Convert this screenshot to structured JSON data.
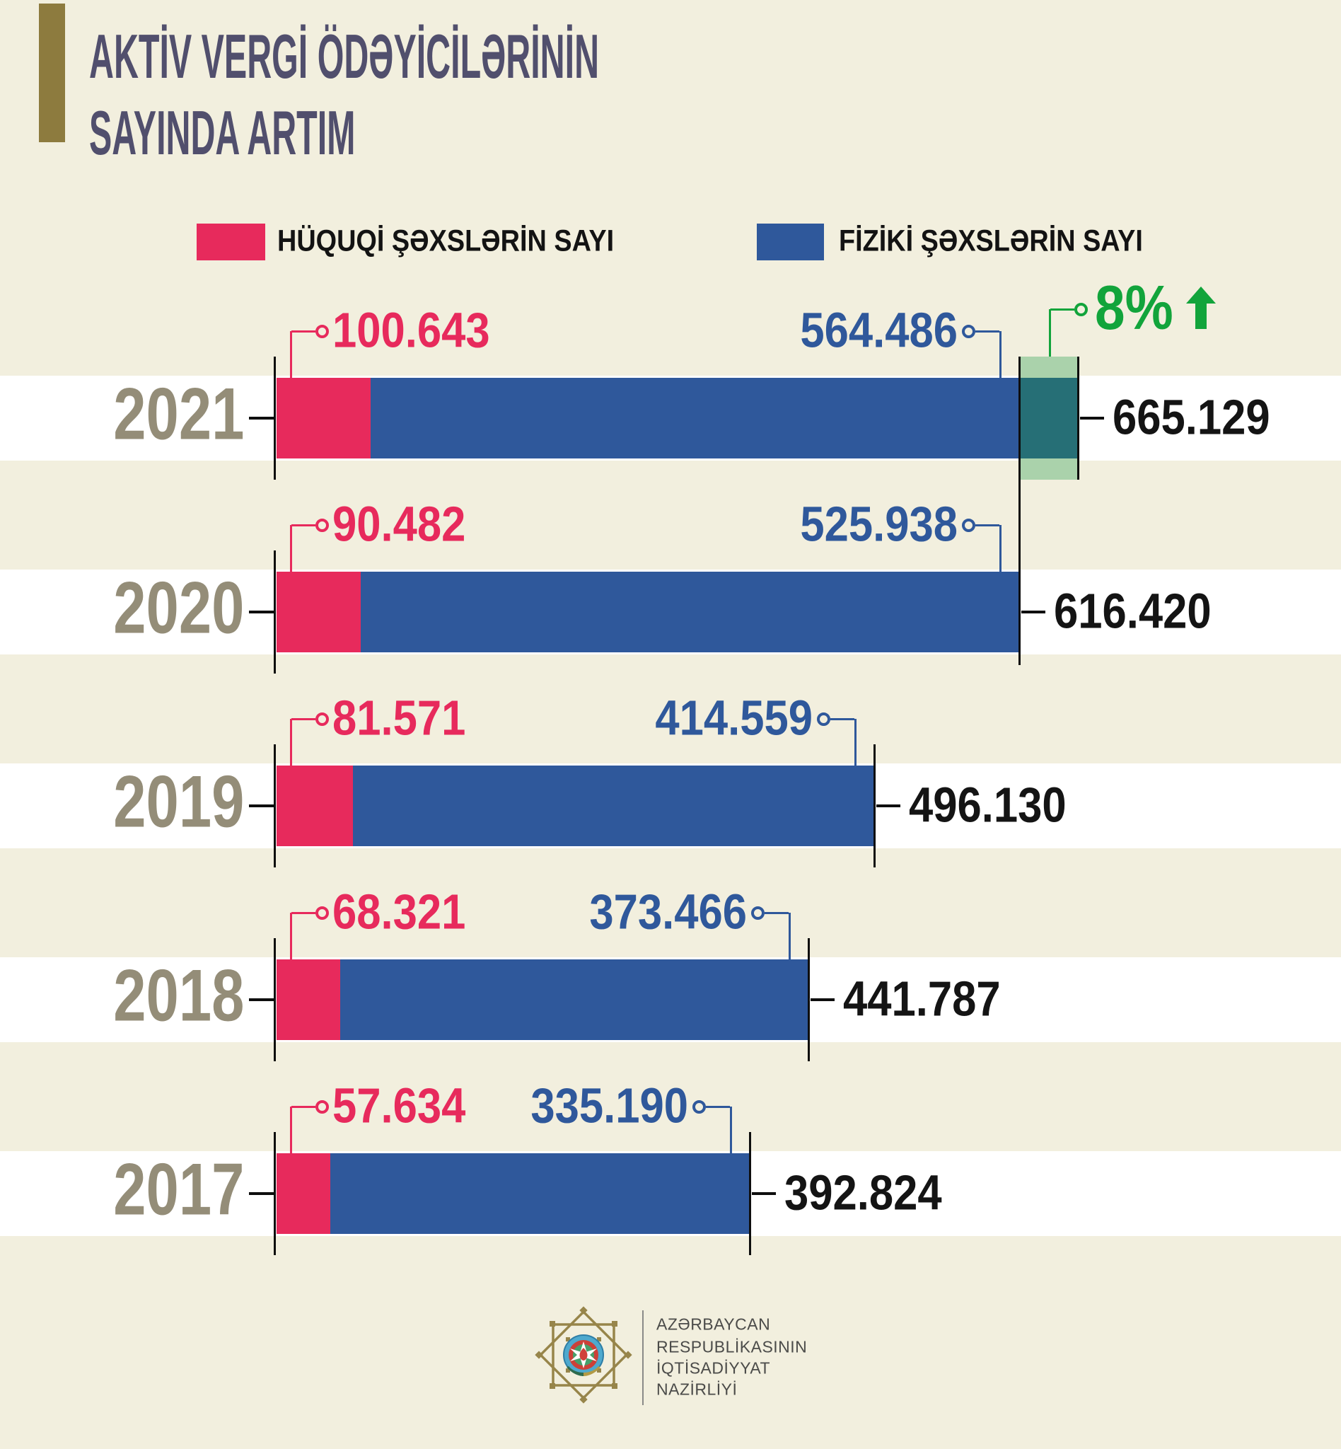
{
  "title": {
    "line1": "AKTİV VERGİ ÖDƏYİCİLƏRİNİN",
    "line2": "SAYINDA ARTIM"
  },
  "legend": {
    "items": [
      {
        "label": "HÜQUQİ ŞƏXSLƏRİN SAYI",
        "color": "#e72a5c"
      },
      {
        "label": "FİZİKİ ŞƏXSLƏRİN SAYI",
        "color": "#2f589b"
      }
    ]
  },
  "growth": {
    "label": "8%",
    "direction": "up",
    "applies_to_year": "2021",
    "color": "#12a43b"
  },
  "chart_data": {
    "type": "bar",
    "orientation": "horizontal",
    "title": "AKTİV VERGİ ÖDƏYİCİLƏRİNİN SAYINDA ARTIM",
    "categories": [
      "2021",
      "2020",
      "2019",
      "2018",
      "2017"
    ],
    "series": [
      {
        "name": "HÜQUQİ ŞƏXSLƏRİN SAYI",
        "color": "#e72a5c",
        "values": [
          100643,
          90482,
          81571,
          68321,
          57634
        ],
        "value_labels": [
          "100.643",
          "90.482",
          "81.571",
          "68.321",
          "57.634"
        ]
      },
      {
        "name": "FİZİKİ ŞƏXSLƏRİN SAYI",
        "color": "#2f589b",
        "values": [
          564486,
          525938,
          414559,
          373466,
          335190
        ],
        "value_labels": [
          "564.486",
          "525.938",
          "414.559",
          "373.466",
          "335.190"
        ]
      }
    ],
    "totals": {
      "values": [
        665129,
        616420,
        496130,
        441787,
        392824
      ],
      "labels": [
        "665.129",
        "616.420",
        "496.130",
        "441.787",
        "392.824"
      ]
    },
    "annotations": [
      {
        "text": "8%",
        "type": "growth-up",
        "year": "2021",
        "from_total": 616420,
        "to_total": 665129
      }
    ],
    "colors": {
      "background": "#f2efde",
      "row_stripe": "#ffffff",
      "growth_highlight_light": "#aad2ab",
      "growth_highlight_dark": "#266f76",
      "year_label": "#948d78",
      "total_label": "#141414",
      "whisker": "#0e0e0e"
    },
    "legend_position": "top",
    "grid": false
  },
  "footer": {
    "org_lines": [
      "AZƏRBAYCAN",
      "RESPUBLİKASININ",
      "İQTİSADİYYAT",
      "NAZİRLİYİ"
    ],
    "logo": "azerbaijan-ministry-of-economy-emblem"
  }
}
